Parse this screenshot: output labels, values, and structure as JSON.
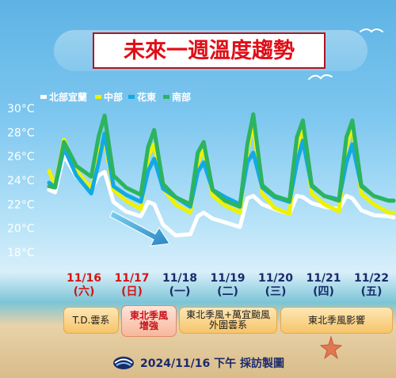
{
  "title": "未來一週溫度趨勢",
  "footer": {
    "credit": "2024/11/16 下午 採訪製圖"
  },
  "colors": {
    "title": "#e00e17",
    "series": [
      "#ffffff",
      "#eef200",
      "#12a9e5",
      "#2cb45e"
    ],
    "date_red": "#d21515",
    "date_navy": "#1b2a6b"
  },
  "chart_data": {
    "type": "line",
    "title": "未來一週溫度趨勢",
    "xlabel": "",
    "ylabel": "",
    "ylim": [
      18,
      30
    ],
    "yticks": [
      30,
      28,
      26,
      24,
      22,
      20,
      18
    ],
    "ytick_labels": [
      "30°C",
      "28°C",
      "26°C",
      "24°C",
      "22°C",
      "20°C",
      "18°C"
    ],
    "grid": false,
    "legend": "top-left",
    "x": [
      0,
      0.12,
      0.3,
      0.55,
      0.85,
      1,
      1.12,
      1.3,
      1.55,
      1.85,
      2,
      2.12,
      2.3,
      2.55,
      2.85,
      3,
      3.12,
      3.3,
      3.55,
      3.85,
      4,
      4.12,
      4.3,
      4.55,
      4.85,
      5,
      5.12,
      5.3,
      5.55,
      5.85,
      6,
      6.12,
      6.3,
      6.55,
      6.85,
      6.95
    ],
    "x_categories": [
      {
        "date": "11/16",
        "weekday": "(六)",
        "highlight": true
      },
      {
        "date": "11/17",
        "weekday": "(日)",
        "highlight": true
      },
      {
        "date": "11/18",
        "weekday": "(一)",
        "highlight": false
      },
      {
        "date": "11/19",
        "weekday": "(二)",
        "highlight": false
      },
      {
        "date": "11/20",
        "weekday": "(三)",
        "highlight": false
      },
      {
        "date": "11/21",
        "weekday": "(四)",
        "highlight": false
      },
      {
        "date": "11/22",
        "weekday": "(五)",
        "highlight": false
      }
    ],
    "series": [
      {
        "name": "北部宜蘭",
        "color": "#ffffff",
        "values": [
          23.2,
          23,
          26.1,
          24.3,
          23.2,
          24.4,
          24.7,
          22.2,
          21.4,
          21,
          22.2,
          22,
          20.3,
          19.4,
          19.5,
          21,
          21.3,
          20.8,
          20.5,
          20.1,
          22.5,
          22.7,
          22,
          21.6,
          21.2,
          22.7,
          22.6,
          22.1,
          21.8,
          21.6,
          22.7,
          22.5,
          21.5,
          21.1,
          21,
          20.9
        ]
      },
      {
        "name": "中部",
        "color": "#eef200",
        "values": [
          24.8,
          23.5,
          27.4,
          24.8,
          23.3,
          26.5,
          27.3,
          23.2,
          22.3,
          21.6,
          26,
          27,
          23.3,
          22,
          21.3,
          25.5,
          26.5,
          22.7,
          21.9,
          21.3,
          26.5,
          28.6,
          22.9,
          21.7,
          21.2,
          26.8,
          28.4,
          22.9,
          22,
          21.4,
          26.8,
          28.6,
          22.9,
          22,
          21.3,
          21.3
        ]
      },
      {
        "name": "花東",
        "color": "#12a9e5",
        "values": [
          23.8,
          23.4,
          26.7,
          24.4,
          22.9,
          25.5,
          27.9,
          23.5,
          22.8,
          22.2,
          24.8,
          25.8,
          23.3,
          22.6,
          21.8,
          24.7,
          25.5,
          23.2,
          22.6,
          22,
          25.5,
          26.3,
          23.4,
          22.6,
          22.2,
          25.5,
          27.3,
          23.5,
          22.7,
          22.4,
          25.5,
          27,
          23.5,
          22.7,
          22.3,
          22.3
        ]
      },
      {
        "name": "南部",
        "color": "#2cb45e",
        "values": [
          23.5,
          23.4,
          27.2,
          25.2,
          24.3,
          27.7,
          29.4,
          24.4,
          23.4,
          22.8,
          26.8,
          28.2,
          23.7,
          22.6,
          22,
          26.3,
          27.2,
          23.2,
          22.3,
          21.8,
          27,
          29.5,
          23.6,
          22.7,
          22.3,
          27.6,
          29,
          23.6,
          22.7,
          22.3,
          27.6,
          29,
          23.6,
          22.7,
          22.3,
          22.3
        ]
      }
    ],
    "events": [
      {
        "label": "T.D.雲系",
        "highlight": false
      },
      {
        "label": "東北季風\n增強",
        "highlight": true
      },
      {
        "label": "東北季風+萬宜颱風\n外圍雲系",
        "highlight": false
      },
      {
        "label": "東北季風影響",
        "highlight": false
      }
    ]
  }
}
